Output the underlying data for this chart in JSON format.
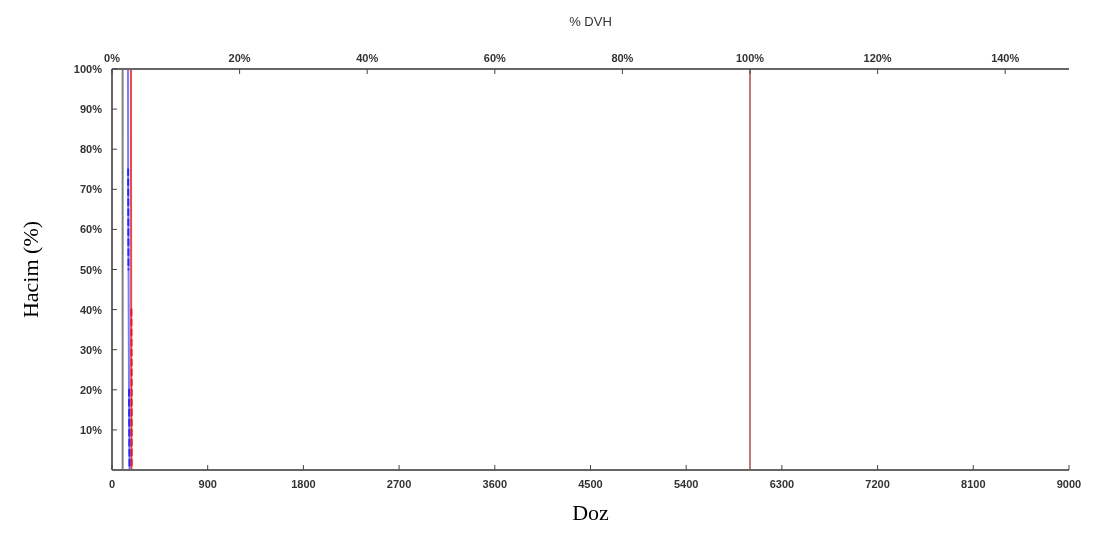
{
  "chart_data": {
    "type": "line",
    "title": "% DVH",
    "xlabel": "Doz",
    "ylabel": "Hacim (%)",
    "xlim": [
      0,
      9000
    ],
    "xticks": [
      0,
      900,
      1800,
      2700,
      3600,
      4500,
      5400,
      6300,
      7200,
      8100,
      9000
    ],
    "x2lim": [
      0,
      150
    ],
    "x2ticks": [
      {
        "value": 0,
        "label": "0%"
      },
      {
        "value": 20,
        "label": "20%"
      },
      {
        "value": 40,
        "label": "40%"
      },
      {
        "value": 60,
        "label": "60%"
      },
      {
        "value": 80,
        "label": "80%"
      },
      {
        "value": 100,
        "label": "100%"
      },
      {
        "value": 120,
        "label": "120%"
      },
      {
        "value": 140,
        "label": "140%"
      }
    ],
    "ylim": [
      0,
      100
    ],
    "yticks": [
      {
        "value": 10,
        "label": "10%"
      },
      {
        "value": 20,
        "label": "20%"
      },
      {
        "value": 30,
        "label": "30%"
      },
      {
        "value": 40,
        "label": "40%"
      },
      {
        "value": 50,
        "label": "50%"
      },
      {
        "value": 60,
        "label": "60%"
      },
      {
        "value": 70,
        "label": "70%"
      },
      {
        "value": 80,
        "label": "80%"
      },
      {
        "value": 90,
        "label": "90%"
      },
      {
        "value": 100,
        "label": "100%"
      }
    ],
    "grid": false,
    "marker": "none",
    "series": [
      {
        "color": "#e84848",
        "line_style": "solid",
        "x": [
          178,
          180,
          182
        ],
        "values": [
          100,
          50,
          0
        ]
      },
      {
        "color": "#7a7aff",
        "line_style": "solid",
        "x": [
          150,
          152,
          160,
          165
        ],
        "values": [
          100,
          75,
          20,
          0
        ]
      },
      {
        "color": "#2828ff",
        "line_style": "dashed",
        "x": [
          152,
          155
        ],
        "values": [
          75,
          50
        ]
      },
      {
        "color": "#2828ff",
        "line_style": "dashed",
        "x": [
          160,
          165
        ],
        "values": [
          20,
          0
        ]
      },
      {
        "color": "#e81818",
        "line_style": "dashed",
        "x": [
          182,
          185,
          185
        ],
        "values": [
          40,
          20,
          0
        ]
      }
    ],
    "ref_lines": [
      {
        "axis": "x",
        "value": 100,
        "label": null,
        "color": "#808080"
      },
      {
        "axis": "x",
        "value": 6000,
        "label": null,
        "color": "#c07878"
      }
    ]
  }
}
